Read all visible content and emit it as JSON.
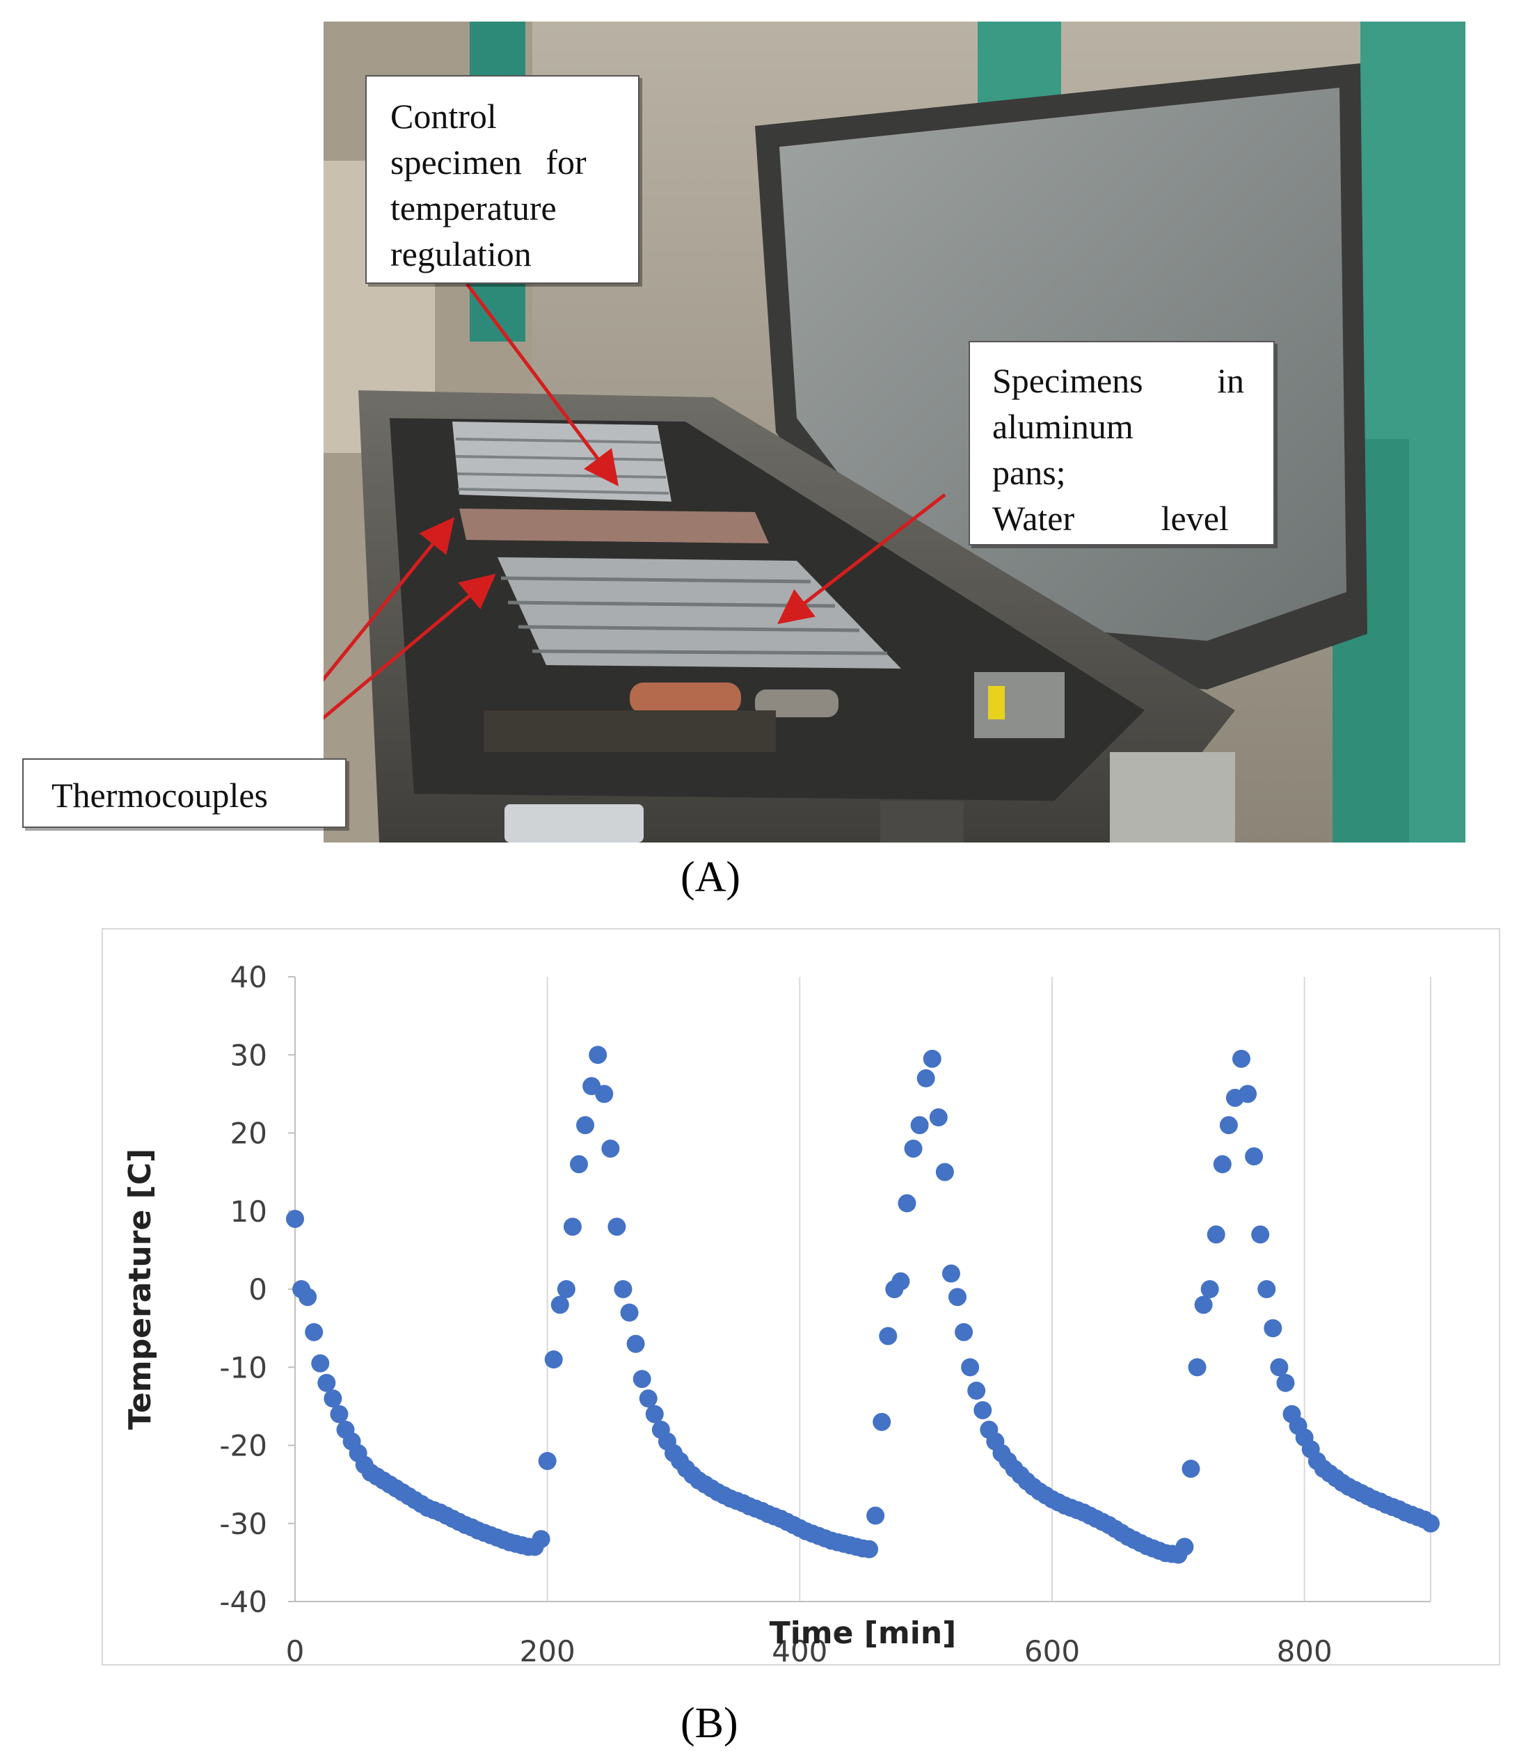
{
  "panel_a": {
    "label": "(A)",
    "callouts": {
      "control": [
        "Control",
        "specimen for",
        "temperature",
        "regulation"
      ],
      "specimens": [
        "Specimens in",
        "aluminum",
        "pans;",
        "Water level"
      ],
      "thermocouples": "Thermocouples"
    }
  },
  "panel_b": {
    "label": "(B)"
  },
  "chart_data": {
    "type": "scatter",
    "title": "",
    "xlabel": "Time [min]",
    "ylabel": "Temperature [C]",
    "xlim": [
      0,
      900
    ],
    "ylim": [
      -40,
      40
    ],
    "xticks": [
      0,
      200,
      400,
      600,
      800
    ],
    "yticks": [
      40,
      30,
      20,
      10,
      0,
      -10,
      -20,
      -30,
      -40
    ],
    "grid": "vertical",
    "marker_color": "#4472C4",
    "series": [
      {
        "x": [
          0,
          5,
          10,
          15,
          20,
          25,
          30,
          35,
          40,
          45,
          50,
          55,
          60,
          65,
          70,
          75,
          80,
          85,
          90,
          95,
          100,
          105,
          110,
          115,
          120,
          125,
          130,
          135,
          140,
          145,
          150,
          155,
          160,
          165,
          170,
          175,
          180,
          185,
          190,
          195,
          200,
          205,
          210,
          215,
          220,
          225,
          230,
          235,
          240,
          245,
          250,
          255,
          260,
          265,
          270,
          275,
          280,
          285,
          290,
          295,
          300,
          305,
          310,
          315,
          320,
          325,
          330,
          335,
          340,
          345,
          350,
          355,
          360,
          365,
          370,
          375,
          380,
          385,
          390,
          395,
          400,
          405,
          410,
          415,
          420,
          425,
          430,
          435,
          440,
          445,
          450,
          455,
          460,
          465,
          470,
          475,
          480,
          485,
          490,
          495,
          500,
          505,
          510,
          515,
          520,
          525,
          530,
          535,
          540,
          545,
          550,
          555,
          560,
          565,
          570,
          575,
          580,
          585,
          590,
          595,
          600,
          605,
          610,
          615,
          620,
          625,
          630,
          635,
          640,
          645,
          650,
          655,
          660,
          665,
          670,
          675,
          680,
          685,
          690,
          695,
          700,
          705,
          710,
          715,
          720,
          725,
          730,
          735,
          740,
          745,
          750,
          755,
          760,
          765,
          770,
          775,
          780,
          785,
          790,
          795,
          800,
          805,
          810,
          815,
          820,
          825,
          830,
          835,
          840,
          845,
          850,
          855,
          860,
          865,
          870,
          875,
          880,
          885,
          890,
          895,
          900
        ],
        "y": [
          9,
          0,
          -1,
          -5.5,
          -9.5,
          -12,
          -14,
          -16,
          -18,
          -19.5,
          -21,
          -22.5,
          -23.5,
          -24,
          -24.5,
          -25,
          -25.5,
          -26,
          -26.5,
          -27,
          -27.5,
          -28,
          -28.3,
          -28.6,
          -29,
          -29.4,
          -29.8,
          -30.2,
          -30.5,
          -30.9,
          -31.2,
          -31.5,
          -31.8,
          -32.1,
          -32.4,
          -32.6,
          -32.8,
          -33,
          -33,
          -32,
          -22,
          -9,
          -2,
          0,
          8,
          16,
          21,
          26,
          30,
          25,
          18,
          8,
          0,
          -3,
          -7,
          -11.5,
          -14,
          -16,
          -18,
          -19.5,
          -21,
          -22,
          -23,
          -23.8,
          -24.5,
          -25,
          -25.5,
          -26,
          -26.4,
          -26.8,
          -27.1,
          -27.4,
          -27.8,
          -28.1,
          -28.4,
          -28.8,
          -29.1,
          -29.4,
          -29.8,
          -30.2,
          -30.6,
          -31,
          -31.3,
          -31.6,
          -31.9,
          -32.2,
          -32.4,
          -32.6,
          -32.8,
          -33,
          -33.2,
          -33.3,
          -29,
          -17,
          -6,
          0,
          1,
          11,
          18,
          21,
          27,
          29.5,
          22,
          15,
          2,
          -1,
          -5.5,
          -10,
          -13,
          -15.5,
          -18,
          -19.5,
          -21,
          -22,
          -23,
          -23.8,
          -24.6,
          -25.3,
          -25.9,
          -26.4,
          -26.9,
          -27.3,
          -27.7,
          -28,
          -28.3,
          -28.6,
          -29,
          -29.4,
          -29.8,
          -30.2,
          -30.7,
          -31.2,
          -31.7,
          -32.1,
          -32.5,
          -32.9,
          -33.2,
          -33.5,
          -33.8,
          -33.9,
          -34,
          -33,
          -23,
          -10,
          -2,
          0,
          7,
          16,
          21,
          24.5,
          29.5,
          25,
          17,
          7,
          0,
          -5,
          -10,
          -12,
          -16,
          -17.5,
          -19,
          -20.5,
          -22,
          -23,
          -23.6,
          -24.2,
          -24.8,
          -25.3,
          -25.7,
          -26.1,
          -26.5,
          -26.9,
          -27.2,
          -27.6,
          -27.9,
          -28.2,
          -28.6,
          -28.9,
          -29.2,
          -29.5,
          -30
        ]
      }
    ]
  }
}
